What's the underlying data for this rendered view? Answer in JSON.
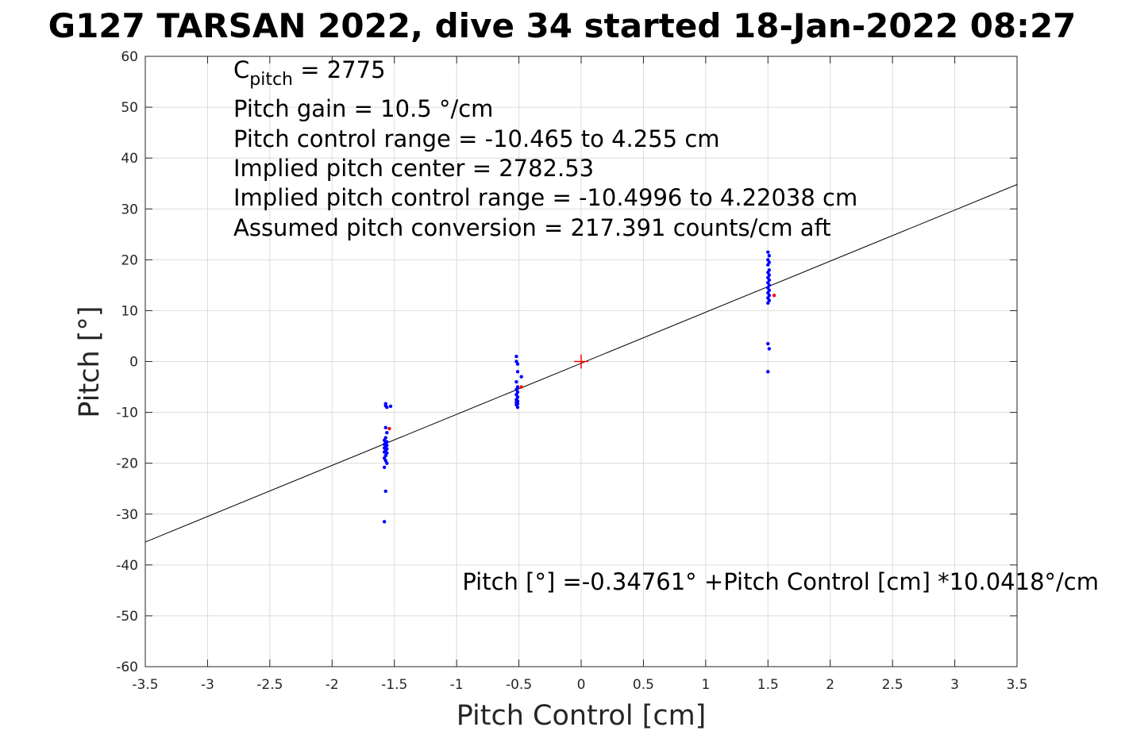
{
  "chart_data": {
    "type": "scatter",
    "title": "G127 TARSAN 2022, dive 34 started 18-Jan-2022 08:27",
    "xlabel": "Pitch Control [cm]",
    "ylabel": "Pitch [°]",
    "xlim": [
      -3.5,
      3.5
    ],
    "ylim": [
      -60,
      60
    ],
    "xticks": [
      -3.5,
      -3,
      -2.5,
      -2,
      -1.5,
      -1,
      -0.5,
      0,
      0.5,
      1,
      1.5,
      2,
      2.5,
      3,
      3.5
    ],
    "xtick_labels": [
      "-3.5",
      "-3",
      "-2.5",
      "-2",
      "-1.5",
      "-1",
      "-0.5",
      "0",
      "0.5",
      "1",
      "1.5",
      "2",
      "2.5",
      "3",
      "3.5"
    ],
    "yticks": [
      -60,
      -50,
      -40,
      -30,
      -20,
      -10,
      0,
      10,
      20,
      30,
      40,
      50,
      60
    ],
    "ytick_labels": [
      "-60",
      "-50",
      "-40",
      "-30",
      "-20",
      "-10",
      "0",
      "10",
      "20",
      "30",
      "40",
      "50",
      "60"
    ],
    "grid": true,
    "annotations": {
      "c_pitch_main": "C",
      "c_pitch_sub": "pitch",
      "c_pitch_value": " = 2775",
      "lines": [
        "Pitch gain = 10.5 °/cm",
        "Pitch control range = -10.465 to 4.255 cm",
        "Implied pitch center = 2782.53",
        "Implied pitch control range = -10.4996 to 4.22038 cm",
        "Assumed pitch conversion = 217.391 counts/cm aft"
      ],
      "fit_equation": "Pitch [°] =-0.34761° +Pitch Control [cm] *10.0418°/cm"
    },
    "fit_line": {
      "intercept": -0.34761,
      "slope": 10.0418
    },
    "center_marker": {
      "x": 0,
      "y": 0,
      "color": "#ff0000"
    },
    "series": [
      {
        "color": "#0000ff",
        "points": [
          [
            -1.57,
            -8.3
          ],
          [
            -1.57,
            -8.7
          ],
          [
            -1.56,
            -9.0
          ],
          [
            -1.53,
            -8.8
          ],
          [
            -1.57,
            -13.0
          ],
          [
            -1.56,
            -14.0
          ],
          [
            -1.57,
            -15.0
          ],
          [
            -1.58,
            -15.5
          ],
          [
            -1.56,
            -15.8
          ],
          [
            -1.57,
            -16.0
          ],
          [
            -1.58,
            -16.3
          ],
          [
            -1.56,
            -16.5
          ],
          [
            -1.57,
            -16.8
          ],
          [
            -1.58,
            -17.0
          ],
          [
            -1.56,
            -17.2
          ],
          [
            -1.57,
            -17.5
          ],
          [
            -1.58,
            -17.8
          ],
          [
            -1.56,
            -18.0
          ],
          [
            -1.57,
            -18.5
          ],
          [
            -1.58,
            -19.0
          ],
          [
            -1.57,
            -19.5
          ],
          [
            -1.56,
            -20.0
          ],
          [
            -1.58,
            -20.8
          ],
          [
            -1.57,
            -25.5
          ],
          [
            -1.58,
            -31.5
          ],
          [
            -0.52,
            1.0
          ],
          [
            -0.52,
            0.0
          ],
          [
            -0.51,
            -0.5
          ],
          [
            -0.51,
            -2.0
          ],
          [
            -0.48,
            -3.0
          ],
          [
            -0.52,
            -4.0
          ],
          [
            -0.51,
            -5.0
          ],
          [
            -0.52,
            -5.5
          ],
          [
            -0.51,
            -6.0
          ],
          [
            -0.52,
            -6.5
          ],
          [
            -0.51,
            -7.0
          ],
          [
            -0.52,
            -7.5
          ],
          [
            -0.51,
            -7.8
          ],
          [
            -0.52,
            -8.0
          ],
          [
            -0.51,
            -8.3
          ],
          [
            -0.52,
            -8.5
          ],
          [
            -0.51,
            -9.0
          ],
          [
            1.5,
            21.5
          ],
          [
            1.51,
            20.8
          ],
          [
            1.5,
            20.0
          ],
          [
            1.51,
            19.5
          ],
          [
            1.5,
            19.0
          ],
          [
            1.51,
            18.0
          ],
          [
            1.5,
            17.5
          ],
          [
            1.51,
            17.0
          ],
          [
            1.5,
            16.5
          ],
          [
            1.51,
            16.0
          ],
          [
            1.5,
            15.5
          ],
          [
            1.51,
            15.0
          ],
          [
            1.5,
            14.5
          ],
          [
            1.51,
            14.0
          ],
          [
            1.5,
            13.5
          ],
          [
            1.51,
            13.0
          ],
          [
            1.5,
            12.5
          ],
          [
            1.51,
            12.0
          ],
          [
            1.5,
            11.5
          ],
          [
            1.5,
            3.5
          ],
          [
            1.51,
            2.5
          ],
          [
            1.5,
            -2.0
          ]
        ]
      },
      {
        "color": "#ff0000",
        "points": [
          [
            -1.54,
            -13.2
          ],
          [
            -0.48,
            -5.0
          ],
          [
            1.55,
            13.0
          ]
        ]
      }
    ]
  }
}
